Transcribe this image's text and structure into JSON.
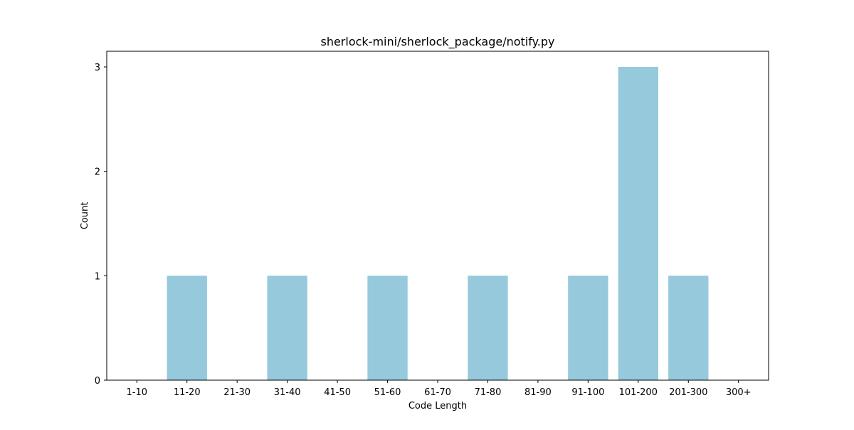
{
  "chart_data": {
    "type": "bar",
    "title": "sherlock-mini/sherlock_package/notify.py",
    "xlabel": "Code Length",
    "ylabel": "Count",
    "categories": [
      "1-10",
      "11-20",
      "21-30",
      "31-40",
      "41-50",
      "51-60",
      "61-70",
      "71-80",
      "81-90",
      "91-100",
      "101-200",
      "201-300",
      "300+"
    ],
    "values": [
      0,
      1,
      0,
      1,
      0,
      1,
      0,
      1,
      0,
      1,
      3,
      1,
      0
    ],
    "ylim": [
      0,
      3.15
    ],
    "yticks": [
      0,
      1,
      2,
      3
    ],
    "bar_color": "#96c9dc",
    "grid": false
  }
}
